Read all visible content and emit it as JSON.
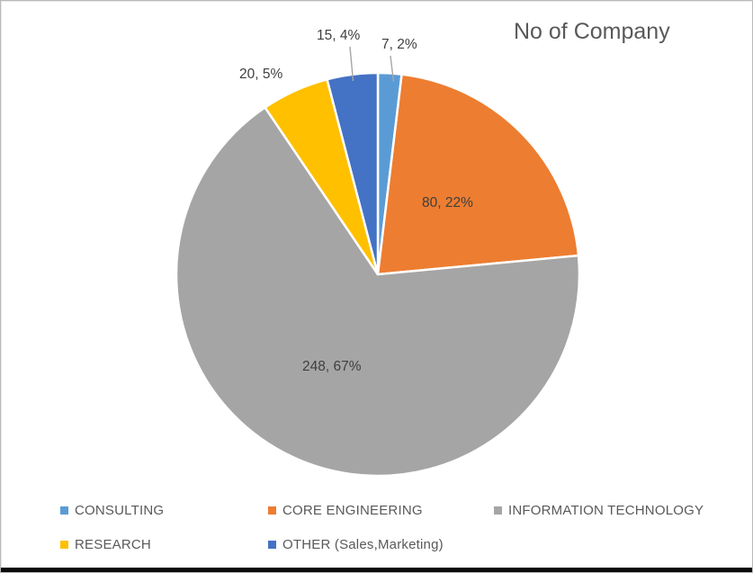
{
  "title": "No of Company",
  "chart_data": {
    "type": "pie",
    "title": "No of Company",
    "categories": [
      "CONSULTING",
      "CORE ENGINEERING",
      "INFORMATION TECHNOLOGY",
      "RESEARCH",
      "OTHER (Sales,Marketing)"
    ],
    "values": [
      7,
      80,
      248,
      20,
      15
    ],
    "percents": [
      2,
      22,
      67,
      5,
      4
    ],
    "data_labels": [
      "7, 2%",
      "80, 22%",
      "248, 67%",
      "20, 5%",
      "15, 4%"
    ],
    "colors": [
      "#5B9BD5",
      "#ED7D31",
      "#A5A5A5",
      "#FFC000",
      "#4472C4"
    ],
    "slice_border_color": "#FFFFFF",
    "leader_line_color": "#A6A6A6",
    "start_angle_deg": 0,
    "direction": "clockwise",
    "legend_position": "bottom"
  },
  "legend": {
    "items": [
      {
        "label": "CONSULTING",
        "color": "#5B9BD5"
      },
      {
        "label": "CORE ENGINEERING",
        "color": "#ED7D31"
      },
      {
        "label": "INFORMATION TECHNOLOGY",
        "color": "#A5A5A5"
      },
      {
        "label": "RESEARCH",
        "color": "#FFC000"
      },
      {
        "label": "OTHER (Sales,Marketing)",
        "color": "#4472C4"
      }
    ]
  }
}
